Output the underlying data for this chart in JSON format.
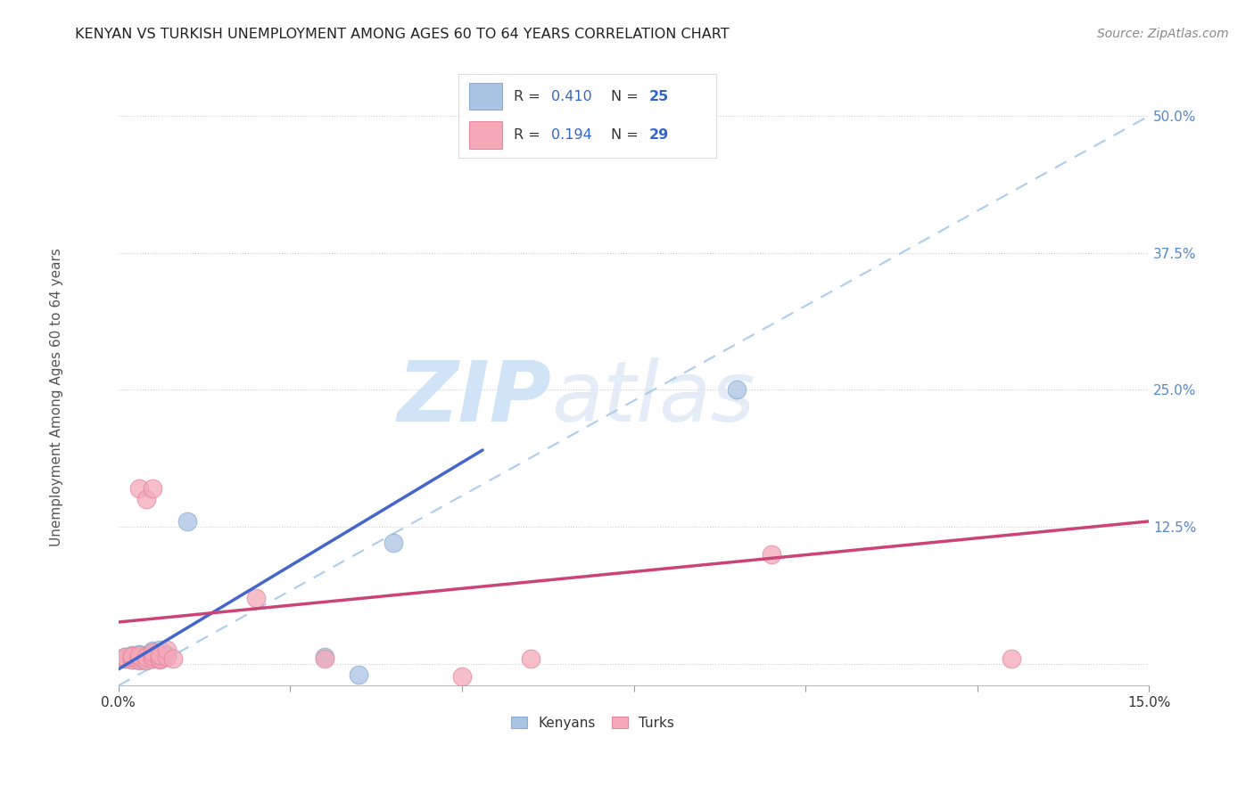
{
  "title": "KENYAN VS TURKISH UNEMPLOYMENT AMONG AGES 60 TO 64 YEARS CORRELATION CHART",
  "source": "Source: ZipAtlas.com",
  "ylabel": "Unemployment Among Ages 60 to 64 years",
  "xlim": [
    0.0,
    0.15
  ],
  "ylim": [
    -0.02,
    0.55
  ],
  "yticks": [
    0.0,
    0.125,
    0.25,
    0.375,
    0.5
  ],
  "ytick_labels": [
    "",
    "12.5%",
    "25.0%",
    "37.5%",
    "50.0%"
  ],
  "xticks": [
    0.0,
    0.025,
    0.05,
    0.075,
    0.1,
    0.125,
    0.15
  ],
  "xtick_labels": [
    "0.0%",
    "",
    "",
    "",
    "",
    "",
    "15.0%"
  ],
  "watermark_zip": "ZIP",
  "watermark_atlas": "atlas",
  "kenya_color": "#aac4e4",
  "kenya_edge": "#8aadd4",
  "turkey_color": "#f4a8b8",
  "turkey_edge": "#e488a0",
  "kenya_R": "0.410",
  "kenya_N": "25",
  "turkey_R": "0.194",
  "turkey_N": "29",
  "kenya_scatter": [
    [
      0.001,
      0.005
    ],
    [
      0.001,
      0.006
    ],
    [
      0.002,
      0.004
    ],
    [
      0.002,
      0.006
    ],
    [
      0.002,
      0.008
    ],
    [
      0.003,
      0.003
    ],
    [
      0.003,
      0.005
    ],
    [
      0.003,
      0.007
    ],
    [
      0.003,
      0.009
    ],
    [
      0.004,
      0.004
    ],
    [
      0.004,
      0.006
    ],
    [
      0.004,
      0.008
    ],
    [
      0.005,
      0.005
    ],
    [
      0.005,
      0.007
    ],
    [
      0.005,
      0.01
    ],
    [
      0.005,
      0.012
    ],
    [
      0.006,
      0.006
    ],
    [
      0.006,
      0.009
    ],
    [
      0.006,
      0.013
    ],
    [
      0.007,
      0.008
    ],
    [
      0.01,
      0.13
    ],
    [
      0.03,
      0.006
    ],
    [
      0.04,
      0.11
    ],
    [
      0.09,
      0.25
    ],
    [
      0.035,
      -0.01
    ]
  ],
  "turkey_scatter": [
    [
      0.001,
      0.005
    ],
    [
      0.001,
      0.006
    ],
    [
      0.002,
      0.004
    ],
    [
      0.002,
      0.006
    ],
    [
      0.002,
      0.007
    ],
    [
      0.003,
      0.004
    ],
    [
      0.003,
      0.006
    ],
    [
      0.003,
      0.008
    ],
    [
      0.003,
      0.16
    ],
    [
      0.004,
      0.003
    ],
    [
      0.004,
      0.006
    ],
    [
      0.004,
      0.15
    ],
    [
      0.005,
      0.005
    ],
    [
      0.005,
      0.007
    ],
    [
      0.005,
      0.01
    ],
    [
      0.005,
      0.16
    ],
    [
      0.006,
      0.004
    ],
    [
      0.006,
      0.007
    ],
    [
      0.006,
      0.005
    ],
    [
      0.006,
      0.008
    ],
    [
      0.007,
      0.006
    ],
    [
      0.007,
      0.013
    ],
    [
      0.008,
      0.005
    ],
    [
      0.02,
      0.06
    ],
    [
      0.03,
      0.005
    ],
    [
      0.05,
      -0.012
    ],
    [
      0.06,
      0.005
    ],
    [
      0.095,
      0.1
    ],
    [
      0.13,
      0.005
    ]
  ],
  "kenya_trend_x": [
    0.0,
    0.053
  ],
  "kenya_trend_y": [
    -0.005,
    0.195
  ],
  "turkey_trend_x": [
    0.0,
    0.15
  ],
  "turkey_trend_y": [
    0.038,
    0.13
  ],
  "dashed_trend_x": [
    0.0,
    0.15
  ],
  "dashed_trend_y": [
    -0.02,
    0.5
  ],
  "background_color": "#ffffff",
  "grid_color": "#cccccc",
  "title_color": "#222222",
  "axis_label_color": "#555555",
  "legend_text_color": "#3366cc",
  "right_label_color": "#5588cc",
  "kenya_trend_color": "#4466cc",
  "turkey_trend_color": "#cc4477",
  "dashed_color": "#aaccee"
}
